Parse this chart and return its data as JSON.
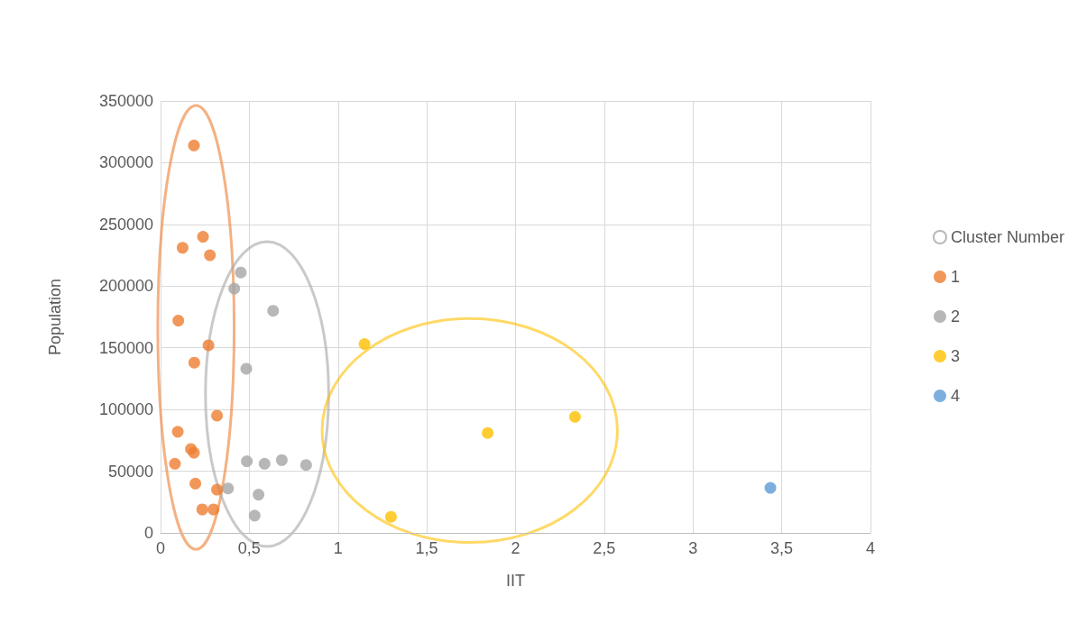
{
  "chart_data": {
    "type": "scatter",
    "xlabel": "IIT",
    "ylabel": "Population",
    "xlim": [
      0,
      4
    ],
    "xticks": [
      0,
      {
        "value": 0.5,
        "label": "0,5"
      },
      1,
      {
        "value": 1.5,
        "label": "1,5"
      },
      2,
      {
        "value": 2.5,
        "label": "2,5"
      },
      3,
      {
        "value": 3.5,
        "label": "3,5"
      },
      4
    ],
    "ylim": [
      0,
      350000
    ],
    "yticks": [
      0,
      50000,
      100000,
      150000,
      200000,
      250000,
      300000,
      350000
    ],
    "grid": true,
    "legend": "right",
    "marker": "circle",
    "series": [
      {
        "name": "Cluster Number",
        "color": "#a5a5a5"
      },
      {
        "name": "1",
        "color": "#ed7d31",
        "x": [
          0.188,
          0.239,
          0.124,
          0.278,
          0.1,
          0.27,
          0.19,
          0.318,
          0.097,
          0.171,
          0.188,
          0.081,
          0.196,
          0.318,
          0.235,
          0.298
        ],
        "values": [
          314000,
          240000,
          231000,
          225000,
          172000,
          152000,
          138000,
          95000,
          82000,
          68000,
          65000,
          56000,
          40000,
          35000,
          19000,
          19000
        ]
      },
      {
        "name": "2",
        "color": "#a5a5a5",
        "x": [
          0.452,
          0.415,
          0.634,
          0.483,
          0.486,
          0.586,
          0.683,
          0.82,
          0.38,
          0.552,
          0.53
        ],
        "values": [
          211000,
          198000,
          180000,
          133000,
          58000,
          56000,
          59000,
          55000,
          36000,
          31000,
          14000
        ]
      },
      {
        "name": "3",
        "color": "#ffc000",
        "x": [
          1.149,
          1.298,
          1.843,
          2.335
        ],
        "values": [
          153000,
          13000,
          81000,
          94000
        ]
      },
      {
        "name": "4",
        "color": "#5b9bd5",
        "x": [
          3.436
        ],
        "values": [
          36500
        ]
      }
    ]
  }
}
